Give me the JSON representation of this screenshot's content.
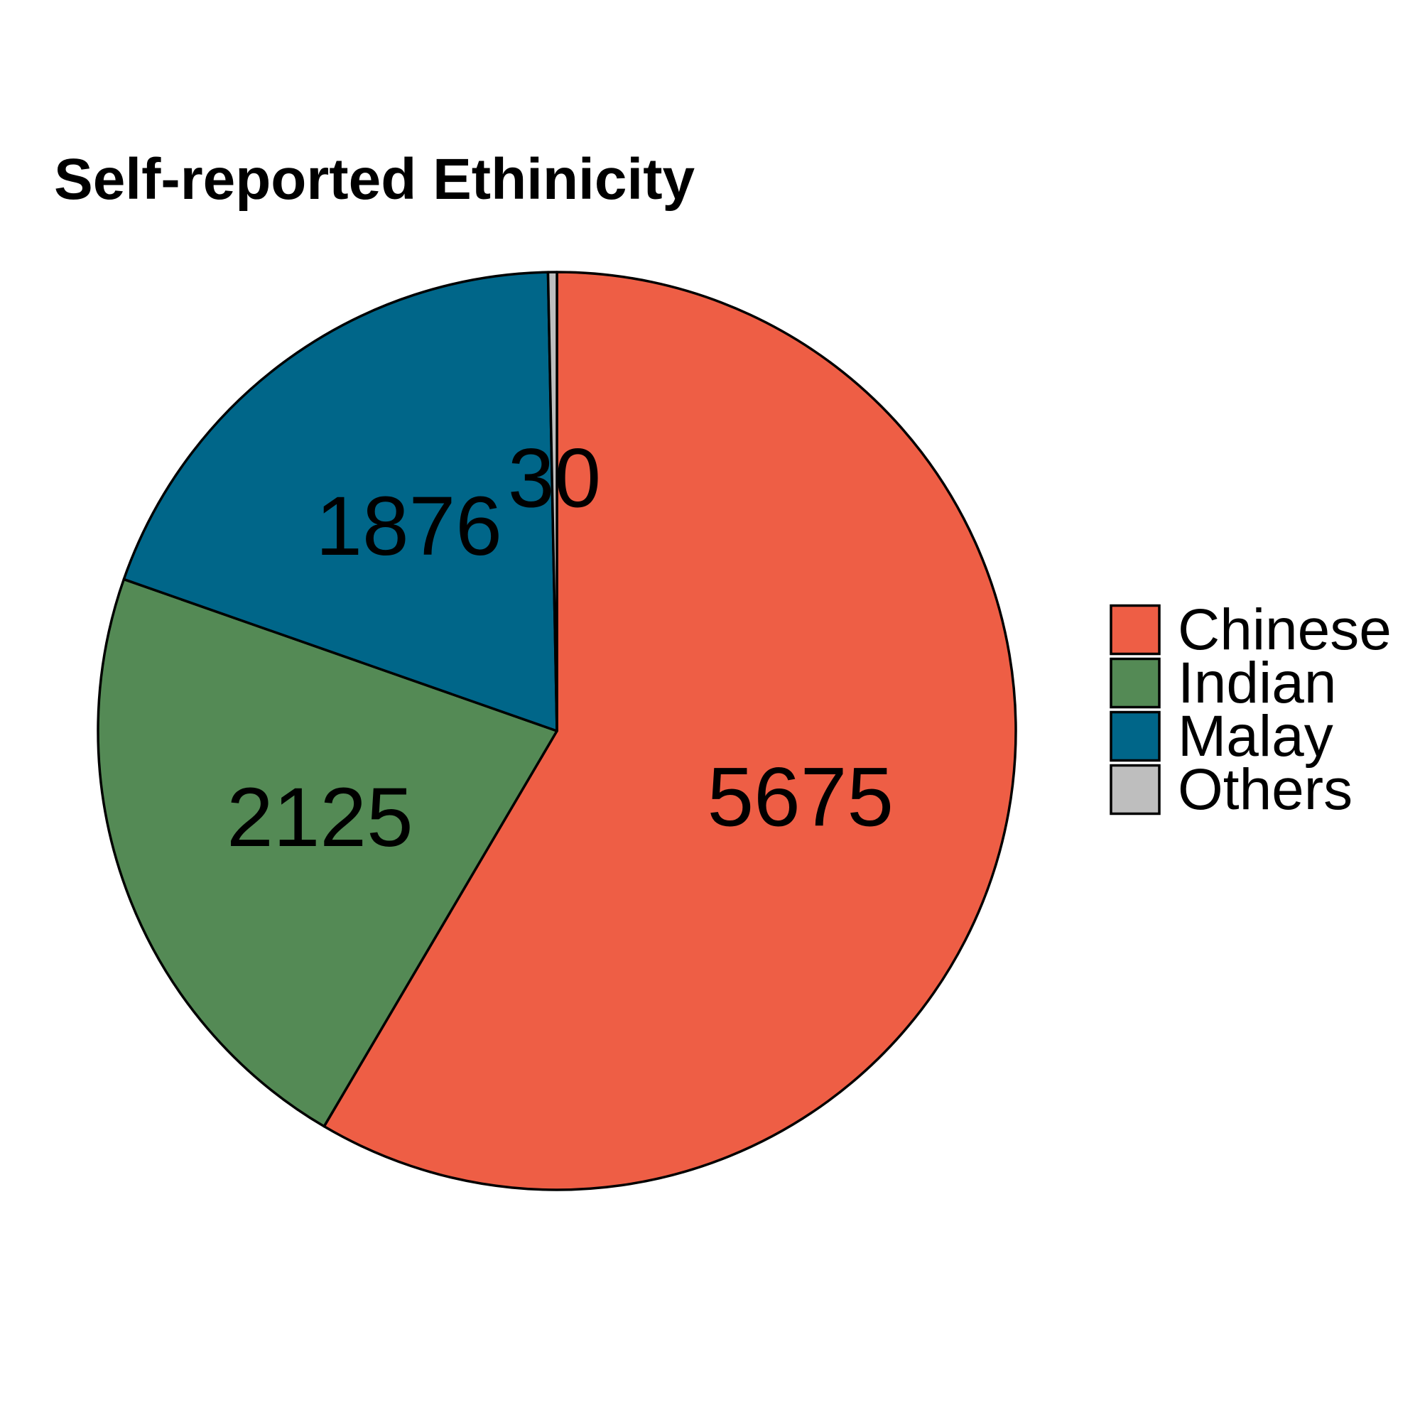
{
  "chart_data": {
    "type": "pie",
    "title": "Self-reported Ethinicity",
    "categories": [
      "Chinese",
      "Indian",
      "Malay",
      "Others"
    ],
    "values": [
      5675,
      2125,
      1876,
      30
    ],
    "data_labels": [
      "5675",
      "2125",
      "1876",
      "30"
    ],
    "colors": [
      "#EE5E45",
      "#548A55",
      "#006689",
      "#BEBEBE"
    ],
    "start": "12 o'clock",
    "direction": "clockwise",
    "legend_position": "right"
  }
}
